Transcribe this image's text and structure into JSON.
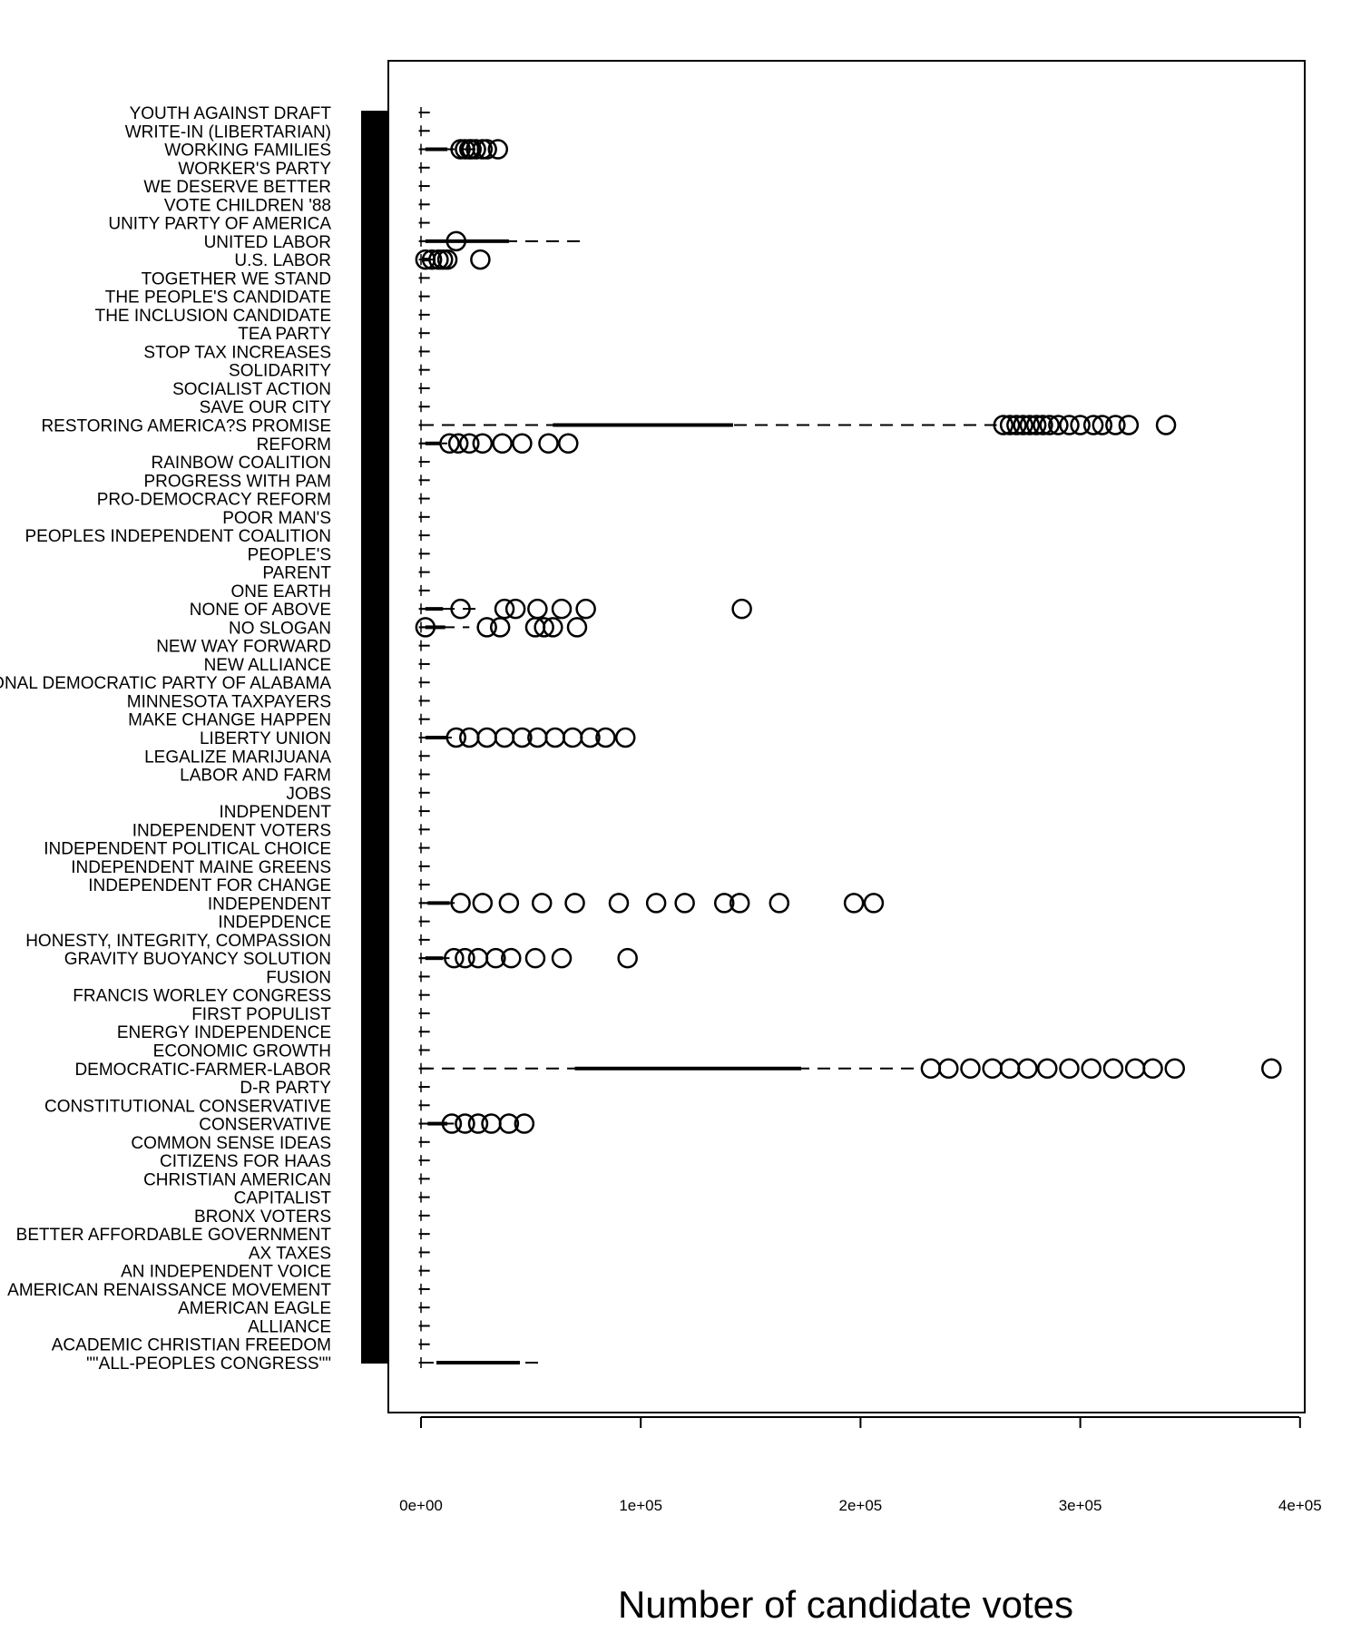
{
  "chart_data": {
    "type": "boxplot",
    "orientation": "horizontal",
    "xlabel": "Number of candidate votes",
    "ylabel": "",
    "xlim": [
      -15000,
      400000
    ],
    "x_ticks": [
      {
        "value": 0,
        "label": "0e+00"
      },
      {
        "value": 100000,
        "label": "1e+05"
      },
      {
        "value": 200000,
        "label": "2e+05"
      },
      {
        "value": 300000,
        "label": "3e+05"
      },
      {
        "value": 400000,
        "label": "4e+05"
      }
    ],
    "categories": [
      "YOUTH AGAINST DRAFT",
      "WRITE-IN (LIBERTARIAN)",
      "WORKING FAMILIES",
      "WORKER'S PARTY",
      "WE DESERVE BETTER",
      "VOTE CHILDREN '88",
      "UNITY PARTY OF AMERICA",
      "UNITED LABOR",
      "U.S. LABOR",
      "TOGETHER WE STAND",
      "THE PEOPLE'S CANDIDATE",
      "THE INCLUSION CANDIDATE",
      "TEA PARTY",
      "STOP TAX INCREASES",
      "SOLIDARITY",
      "SOCIALIST ACTION",
      "SAVE OUR CITY",
      "RESTORING AMERICA?S PROMISE",
      "REFORM",
      "RAINBOW COALITION",
      "PROGRESS WITH PAM",
      "PRO-DEMOCRACY REFORM",
      "POOR MAN'S",
      "PEOPLES INDEPENDENT COALITION",
      "PEOPLE'S",
      "PARENT",
      "ONE EARTH",
      "NONE OF ABOVE",
      "NO SLOGAN",
      "NEW WAY FORWARD",
      "NEW ALLIANCE",
      "NATIONAL DEMOCRATIC PARTY OF ALABAMA",
      "MINNESOTA TAXPAYERS",
      "MAKE CHANGE HAPPEN",
      "LIBERTY UNION",
      "LEGALIZE MARIJUANA",
      "LABOR AND FARM",
      "JOBS",
      "INDPENDENT",
      "INDEPENDENT VOTERS",
      "INDEPENDENT POLITICAL CHOICE",
      "INDEPENDENT MAINE GREENS",
      "INDEPENDENT FOR CHANGE",
      "INDEPENDENT",
      "INDEPDENCE",
      "HONESTY, INTEGRITY, COMPASSION",
      "GRAVITY BUOYANCY SOLUTION",
      "FUSION",
      "FRANCIS WORLEY CONGRESS",
      "FIRST POPULIST",
      "ENERGY INDEPENDENCE",
      "ECONOMIC GROWTH",
      "DEMOCRATIC-FARMER-LABOR",
      "D-R PARTY",
      "CONSTITUTIONAL CONSERVATIVE",
      "CONSERVATIVE",
      "COMMON SENSE IDEAS",
      "CITIZENS FOR HAAS",
      "CHRISTIAN AMERICAN",
      "CAPITALIST",
      "BRONX VOTERS",
      "BETTER AFFORDABLE GOVERNMENT",
      "AX TAXES",
      "AN INDEPENDENT VOICE",
      "AMERICAN RENAISSANCE MOVEMENT",
      "AMERICAN EAGLE",
      "ALLIANCE",
      "ACADEMIC CHRISTIAN FREEDOM",
      "\"\"ALL-PEOPLES CONGRESS\"\""
    ],
    "series": [
      {
        "label": "WORKING FAMILIES",
        "box": [
          2000,
          12000
        ],
        "whisker": [
          0,
          26000
        ],
        "outliers": [
          18000,
          20000,
          22000,
          23000,
          25000,
          28000,
          30000,
          35000
        ]
      },
      {
        "label": "UNITED LABOR",
        "box": [
          2000,
          40000
        ],
        "whisker": [
          0,
          73000
        ],
        "outliers": [
          16000
        ]
      },
      {
        "label": "U.S. LABOR",
        "box": [
          1000,
          4000
        ],
        "whisker": [
          0,
          7000
        ],
        "outliers": [
          2000,
          5000,
          8000,
          10000,
          12000,
          27000
        ]
      },
      {
        "label": "RESTORING AMERICA?S PROMISE",
        "box": [
          60000,
          142000
        ],
        "whisker": [
          0,
          262000
        ],
        "outliers": [
          265000,
          268000,
          271000,
          274000,
          277000,
          280000,
          283000,
          286000,
          290000,
          295000,
          300000,
          306000,
          310000,
          316000,
          322000,
          339000
        ]
      },
      {
        "label": "REFORM",
        "box": [
          2000,
          9000
        ],
        "whisker": [
          0,
          12000
        ],
        "outliers": [
          13000,
          17000,
          22000,
          28000,
          37000,
          46000,
          58000,
          67000
        ]
      },
      {
        "label": "NONE OF ABOVE",
        "box": [
          2000,
          10000
        ],
        "whisker": [
          0,
          28000
        ],
        "outliers": [
          18000,
          38000,
          43000,
          53000,
          64000,
          75000,
          146000
        ]
      },
      {
        "label": "NO SLOGAN",
        "box": [
          2000,
          11000
        ],
        "whisker": [
          0,
          22000
        ],
        "outliers": [
          2000,
          30000,
          36000,
          52000,
          56000,
          60000,
          71000
        ]
      },
      {
        "label": "LIBERTY UNION",
        "box": [
          2000,
          12000
        ],
        "whisker": [
          0,
          14000
        ],
        "outliers": [
          16000,
          22000,
          30000,
          38000,
          46000,
          53000,
          61000,
          69000,
          77000,
          84000,
          93000
        ]
      },
      {
        "label": "INDEPENDENT",
        "box": [
          3000,
          13000
        ],
        "whisker": [
          0,
          16000
        ],
        "outliers": [
          18000,
          28000,
          40000,
          55000,
          70000,
          90000,
          107000,
          120000,
          138000,
          145000,
          163000,
          197000,
          206000
        ]
      },
      {
        "label": "GRAVITY BUOYANCY SOLUTION",
        "box": [
          2000,
          10000
        ],
        "whisker": [
          0,
          13000
        ],
        "outliers": [
          15000,
          20000,
          26000,
          34000,
          41000,
          52000,
          64000,
          94000
        ]
      },
      {
        "label": "DEMOCRATIC-FARMER-LABOR",
        "box": [
          70000,
          173000
        ],
        "whisker": [
          0,
          228000
        ],
        "outliers": [
          232000,
          240000,
          250000,
          260000,
          268000,
          276000,
          285000,
          295000,
          305000,
          315000,
          325000,
          333000,
          343000,
          387000
        ]
      },
      {
        "label": "CONSERVATIVE",
        "box": [
          3000,
          12000
        ],
        "whisker": [
          0,
          15000
        ],
        "outliers": [
          14000,
          20000,
          26000,
          32000,
          40000,
          47000
        ]
      },
      {
        "label": "\"\"ALL-PEOPLES CONGRESS\"\"",
        "box": [
          7000,
          45000
        ],
        "whisker": [
          0,
          54000
        ],
        "outliers": []
      }
    ]
  }
}
